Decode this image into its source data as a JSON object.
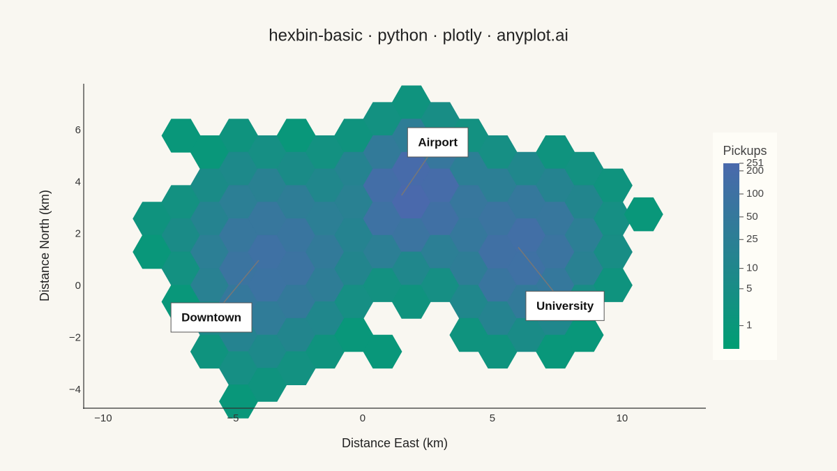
{
  "chart_data": {
    "type": "hexbin",
    "title": "hexbin-basic · python · plotly · anyplot.ai",
    "x_label": "Distance East (km)",
    "y_label": "Distance North (km)",
    "x": [
      -8.11,
      -8.11,
      -7.0,
      -7.0,
      -7.0,
      -7.0,
      -7.0,
      -5.89,
      -5.89,
      -5.89,
      -5.89,
      -5.89,
      -5.89,
      -5.89,
      -4.78,
      -4.78,
      -4.78,
      -4.78,
      -4.78,
      -4.78,
      -4.78,
      -4.78,
      -4.78,
      -3.67,
      -3.67,
      -3.67,
      -3.67,
      -3.67,
      -3.67,
      -3.67,
      -3.67,
      -2.56,
      -2.56,
      -2.56,
      -2.56,
      -2.56,
      -2.56,
      -2.56,
      -2.56,
      -1.45,
      -1.45,
      -1.45,
      -1.45,
      -1.45,
      -1.45,
      -1.45,
      -0.34,
      -0.34,
      -0.34,
      -0.34,
      -0.34,
      -0.34,
      -0.34,
      0.77,
      0.77,
      0.77,
      0.77,
      0.77,
      0.77,
      0.77,
      1.88,
      1.88,
      1.88,
      1.88,
      1.88,
      1.88,
      1.88,
      2.99,
      2.99,
      2.99,
      2.99,
      2.99,
      2.99,
      4.1,
      4.1,
      4.1,
      4.1,
      4.1,
      4.1,
      4.1,
      5.21,
      5.21,
      5.21,
      5.21,
      5.21,
      5.21,
      5.21,
      6.32,
      6.32,
      6.32,
      6.32,
      6.32,
      6.32,
      7.43,
      7.43,
      7.43,
      7.43,
      7.43,
      7.43,
      7.43,
      8.54,
      8.54,
      8.54,
      8.54,
      8.54,
      8.54,
      9.65,
      9.65,
      9.65,
      9.65,
      10.83
    ],
    "y": [
      2.6,
      1.32,
      5.8,
      3.24,
      1.96,
      0.68,
      -0.6,
      5.16,
      3.88,
      2.6,
      1.32,
      0.04,
      -1.24,
      -2.52,
      5.8,
      4.52,
      3.24,
      1.96,
      0.68,
      -0.6,
      -1.88,
      -3.16,
      -4.44,
      5.16,
      3.88,
      2.6,
      1.32,
      0.04,
      -1.24,
      -2.52,
      -3.8,
      5.8,
      4.52,
      3.24,
      1.96,
      0.68,
      -0.6,
      -1.88,
      -3.16,
      5.16,
      3.88,
      2.6,
      1.32,
      0.04,
      -1.24,
      -2.52,
      5.8,
      4.52,
      3.24,
      1.96,
      0.68,
      -0.6,
      -1.88,
      6.44,
      5.16,
      3.88,
      2.6,
      1.32,
      0.04,
      -2.52,
      7.08,
      5.8,
      4.52,
      3.24,
      1.96,
      0.68,
      -0.6,
      6.44,
      5.16,
      3.88,
      2.6,
      1.32,
      0.04,
      5.8,
      4.52,
      3.24,
      1.96,
      0.68,
      -0.6,
      -1.88,
      5.16,
      3.88,
      2.6,
      1.32,
      0.04,
      -1.24,
      -2.52,
      4.52,
      3.24,
      1.96,
      0.68,
      -0.6,
      -1.88,
      5.16,
      3.88,
      2.6,
      1.32,
      0.04,
      -1.24,
      -2.52,
      4.52,
      3.24,
      1.96,
      0.68,
      -0.6,
      -1.88,
      3.88,
      2.6,
      1.32,
      0.04,
      2.77
    ],
    "values": [
      2,
      1,
      1,
      3,
      6,
      3,
      1,
      1,
      6,
      15,
      25,
      20,
      8,
      2,
      2,
      8,
      25,
      60,
      80,
      50,
      15,
      4,
      1,
      4,
      20,
      60,
      110,
      90,
      35,
      8,
      2,
      1,
      6,
      30,
      70,
      85,
      45,
      12,
      3,
      3,
      10,
      25,
      40,
      30,
      10,
      2,
      2,
      15,
      20,
      15,
      12,
      4,
      1,
      3,
      40,
      150,
      100,
      25,
      3,
      1,
      2,
      30,
      200,
      251,
      80,
      10,
      2,
      5,
      60,
      180,
      120,
      25,
      4,
      3,
      25,
      60,
      50,
      30,
      10,
      2,
      4,
      25,
      80,
      120,
      70,
      15,
      2,
      10,
      50,
      140,
      110,
      40,
      6,
      2,
      15,
      60,
      80,
      50,
      10,
      1,
      3,
      12,
      25,
      20,
      5,
      1,
      2,
      4,
      5,
      2,
      1
    ],
    "xlim": [
      -10.75,
      13.23
    ],
    "ylim": [
      -4.7,
      7.8
    ],
    "xticks": [
      {
        "value": -10,
        "label": "−10"
      },
      {
        "value": -5,
        "label": "−5"
      },
      0,
      5,
      10
    ],
    "yticks": [
      {
        "value": -4,
        "label": "−4"
      },
      {
        "value": -2,
        "label": "−2"
      },
      0,
      2,
      4,
      6
    ],
    "colorbar_title": "Pickups",
    "clim": [
      0,
      251
    ],
    "colorbar_ticks": [
      1,
      5,
      10,
      25,
      50,
      100,
      200,
      251
    ],
    "log_color": true,
    "colorscale": [
      "#009E73",
      "#4A69AC"
    ],
    "annotations": [
      {
        "text": "Airport",
        "x": 1.5,
        "y": 3.5
      },
      {
        "text": "Downtown",
        "x": -4.0,
        "y": 1.0
      },
      {
        "text": "University",
        "x": 6.0,
        "y": 1.5
      }
    ]
  }
}
